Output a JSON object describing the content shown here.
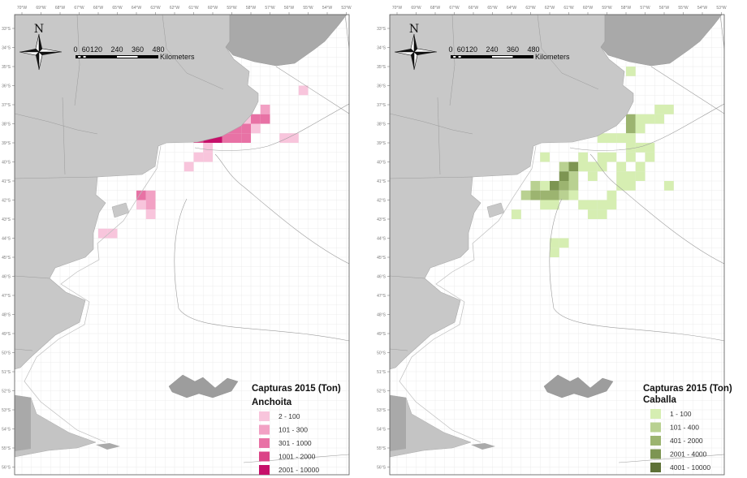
{
  "axes": {
    "lon_labels": [
      "70°W",
      "69°W",
      "68°W",
      "67°W",
      "66°W",
      "65°W",
      "64°W",
      "63°W",
      "62°W",
      "61°W",
      "60°W",
      "59°W",
      "58°W",
      "57°W",
      "56°W",
      "55°W",
      "54°W",
      "53°W"
    ],
    "lat_labels": [
      "33°S",
      "34°S",
      "35°S",
      "36°S",
      "37°S",
      "38°S",
      "39°S",
      "40°S",
      "41°S",
      "42°S",
      "43°S",
      "44°S",
      "45°S",
      "46°S",
      "47°S",
      "48°S",
      "49°S",
      "50°S",
      "51°S",
      "52°S",
      "53°S",
      "54°S",
      "55°S",
      "56°S"
    ]
  },
  "compass": {
    "label": "N"
  },
  "scale_bar": {
    "labels": [
      "0",
      "60",
      "120",
      "240",
      "360",
      "480"
    ],
    "values_km": [
      0,
      60,
      120,
      240,
      360,
      480
    ],
    "unit": "Kilometers"
  },
  "panels": [
    {
      "legend_title": "Capturas 2015 (Ton)",
      "species": "Anchoita",
      "classes": [
        {
          "label": "2 - 100",
          "color": "#f8c5dc"
        },
        {
          "label": "101 - 300",
          "color": "#f2a1c4"
        },
        {
          "label": "301 - 1000",
          "color": "#e872a5"
        },
        {
          "label": "1001 - 2000",
          "color": "#db4487"
        },
        {
          "label": "2001 - 10000",
          "color": "#c6106a"
        }
      ],
      "cells": [
        [
          -55.5,
          -36,
          1
        ],
        [
          -57.5,
          -37,
          2
        ],
        [
          -58,
          -37.5,
          3
        ],
        [
          -57.5,
          -37.5,
          3
        ],
        [
          -58.5,
          -37.5,
          1
        ],
        [
          -58,
          -38,
          1
        ],
        [
          -59.5,
          -38,
          3
        ],
        [
          -59,
          -38,
          3
        ],
        [
          -58.5,
          -38,
          3
        ],
        [
          -61,
          -38.5,
          4
        ],
        [
          -60.5,
          -38.5,
          5
        ],
        [
          -60,
          -38.5,
          5
        ],
        [
          -59.5,
          -38.5,
          3
        ],
        [
          -59,
          -38.5,
          3
        ],
        [
          -58.5,
          -38.5,
          3
        ],
        [
          -56.5,
          -38.5,
          1
        ],
        [
          -56,
          -38.5,
          1
        ],
        [
          -60.5,
          -39,
          1
        ],
        [
          -61,
          -39.5,
          1
        ],
        [
          -60.5,
          -39.5,
          1
        ],
        [
          -61.5,
          -40,
          1
        ],
        [
          -64,
          -41.5,
          3
        ],
        [
          -63.5,
          -41.5,
          2
        ],
        [
          -64,
          -42,
          1
        ],
        [
          -63.5,
          -42,
          2
        ],
        [
          -63.5,
          -42.5,
          1
        ],
        [
          -66,
          -43.5,
          1
        ],
        [
          -65.5,
          -43.5,
          1
        ]
      ]
    },
    {
      "legend_title": "Capturas 2015 (Ton)",
      "species": "Caballa",
      "classes": [
        {
          "label": "1 - 100",
          "color": "#d6eeb2"
        },
        {
          "label": "101 - 400",
          "color": "#b9d191"
        },
        {
          "label": "401 - 2000",
          "color": "#9cb470"
        },
        {
          "label": "2001 - 4000",
          "color": "#7d9552"
        },
        {
          "label": "4001 - 10000",
          "color": "#5e7137"
        }
      ],
      "cells": [
        [
          -58,
          -35,
          1
        ],
        [
          -56.5,
          -37,
          1
        ],
        [
          -56,
          -37,
          1
        ],
        [
          -58,
          -37.5,
          3
        ],
        [
          -57.5,
          -37.5,
          1
        ],
        [
          -57,
          -37.5,
          1
        ],
        [
          -56.5,
          -37.5,
          1
        ],
        [
          -58,
          -38,
          3
        ],
        [
          -57.5,
          -38,
          1
        ],
        [
          -59.5,
          -38.5,
          1
        ],
        [
          -59,
          -38.5,
          1
        ],
        [
          -58.5,
          -38.5,
          1
        ],
        [
          -58,
          -38.5,
          1
        ],
        [
          -58,
          -39,
          1
        ],
        [
          -57.5,
          -39,
          1
        ],
        [
          -57,
          -39,
          1
        ],
        [
          -62.5,
          -39.5,
          1
        ],
        [
          -60.5,
          -39.5,
          1
        ],
        [
          -59.5,
          -39.5,
          1
        ],
        [
          -59,
          -39.5,
          1
        ],
        [
          -58,
          -39.5,
          1
        ],
        [
          -57,
          -39.5,
          1
        ],
        [
          -61.5,
          -40,
          2
        ],
        [
          -61,
          -40,
          4
        ],
        [
          -60.5,
          -40,
          1
        ],
        [
          -60,
          -40,
          1
        ],
        [
          -59.5,
          -40,
          1
        ],
        [
          -58.5,
          -40,
          1
        ],
        [
          -57.5,
          -40,
          1
        ],
        [
          -61.5,
          -40.5,
          4
        ],
        [
          -61,
          -40.5,
          2
        ],
        [
          -60,
          -40.5,
          1
        ],
        [
          -58.5,
          -40.5,
          1
        ],
        [
          -58,
          -40.5,
          1
        ],
        [
          -57.5,
          -40.5,
          1
        ],
        [
          -63,
          -41,
          2
        ],
        [
          -62.5,
          -41,
          1
        ],
        [
          -62,
          -41,
          4
        ],
        [
          -61.5,
          -41,
          3
        ],
        [
          -61,
          -41,
          2
        ],
        [
          -58.5,
          -41,
          1
        ],
        [
          -58,
          -41,
          1
        ],
        [
          -56,
          -41,
          1
        ],
        [
          -63.5,
          -41.5,
          2
        ],
        [
          -63,
          -41.5,
          3
        ],
        [
          -62.5,
          -41.5,
          3
        ],
        [
          -62,
          -41.5,
          3
        ],
        [
          -61.5,
          -41.5,
          2
        ],
        [
          -61,
          -41.5,
          1
        ],
        [
          -59,
          -41.5,
          1
        ],
        [
          -62.5,
          -42,
          1
        ],
        [
          -62,
          -42,
          1
        ],
        [
          -60.5,
          -42,
          1
        ],
        [
          -60,
          -42,
          1
        ],
        [
          -59.5,
          -42,
          1
        ],
        [
          -59,
          -42,
          1
        ],
        [
          -64,
          -42.5,
          1
        ],
        [
          -60,
          -42.5,
          1
        ],
        [
          -59.5,
          -42.5,
          1
        ],
        [
          -62,
          -44,
          1
        ],
        [
          -61.5,
          -44,
          1
        ],
        [
          -62,
          -44.5,
          1
        ]
      ]
    }
  ]
}
